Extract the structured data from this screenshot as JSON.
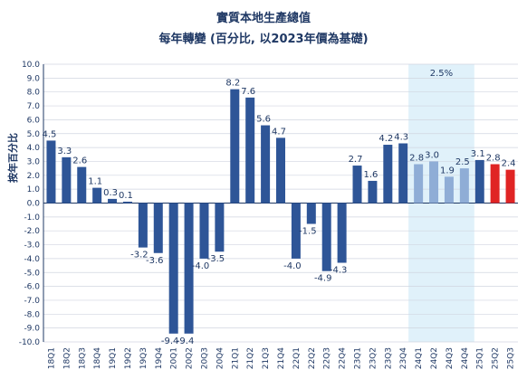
{
  "chart_data": {
    "type": "bar",
    "title": "實質本地生產總值",
    "subtitle": "每年轉變 (百分比, 以2023年價為基礎)",
    "ylabel": "按年百分比",
    "ylim": [
      -10,
      10
    ],
    "ytick_step": 1,
    "grid": true,
    "forecast_band_label": "2.5%",
    "categories": [
      "18Q1",
      "18Q2",
      "18Q3",
      "18Q4",
      "19Q1",
      "19Q2",
      "19Q3",
      "19Q4",
      "20Q1",
      "20Q2",
      "20Q3",
      "20Q4",
      "21Q1",
      "21Q2",
      "21Q3",
      "21Q4",
      "22Q1",
      "22Q2",
      "22Q3",
      "22Q4",
      "23Q1",
      "23Q2",
      "23Q3",
      "23Q4",
      "24Q1",
      "24Q2",
      "24Q3",
      "24Q4",
      "25Q1",
      "25Q2",
      "25Q3"
    ],
    "values": [
      4.5,
      3.3,
      2.6,
      1.1,
      0.3,
      0.1,
      -3.2,
      -3.6,
      -9.4,
      -9.4,
      -4.0,
      -3.5,
      8.2,
      7.6,
      5.6,
      4.7,
      -4.0,
      -1.5,
      -4.9,
      -4.3,
      2.7,
      1.6,
      4.2,
      4.3,
      2.8,
      3.0,
      1.9,
      2.5,
      3.1,
      2.8,
      2.4
    ],
    "data_labels": [
      "4.5",
      "3.3",
      "2.6",
      "1.1",
      "0.3",
      "0.1",
      "-3.2",
      "-3.6",
      "-9.4",
      "-9.4",
      "-4.0",
      "-3.5",
      "8.2",
      "7.6",
      "5.6",
      "4.7",
      "-4.0",
      "-1.5",
      "-4.9",
      "-4.3",
      "2.7",
      "1.6",
      "4.2",
      "4.3",
      "2.8",
      "3.0",
      "1.9",
      "2.5",
      "3.1",
      "2.8",
      "2.4"
    ],
    "bar_groups": [
      "main",
      "main",
      "main",
      "main",
      "main",
      "main",
      "main",
      "main",
      "main",
      "main",
      "main",
      "main",
      "main",
      "main",
      "main",
      "main",
      "main",
      "main",
      "main",
      "main",
      "main",
      "main",
      "main",
      "main",
      "band",
      "band",
      "band",
      "band",
      "main",
      "latest",
      "latest"
    ],
    "colors": {
      "main": "#2e5597",
      "band": "#8fadd6",
      "latest": "#e02424",
      "band_fill": "#e0f1fa",
      "grid": "#d0d5e0",
      "axis": "#1f3864"
    }
  }
}
